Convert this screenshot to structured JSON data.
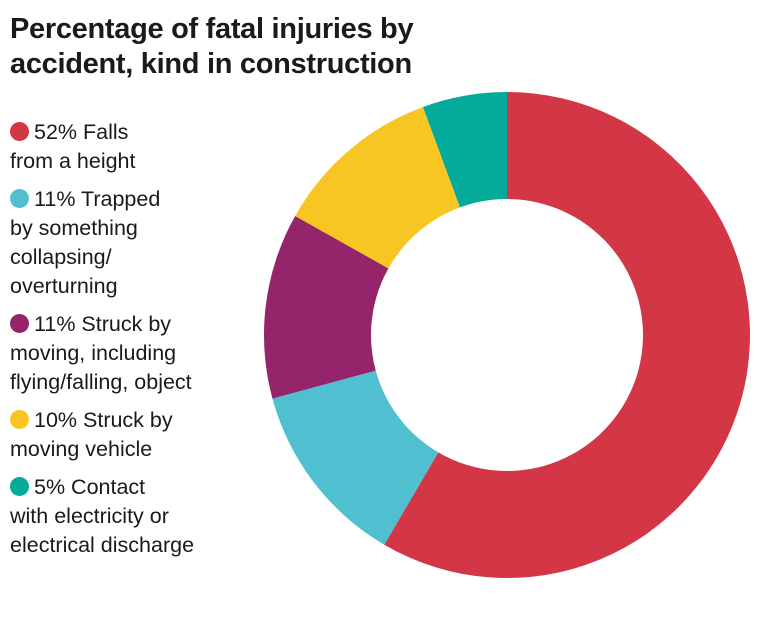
{
  "title_line1": "Percentage of fatal injuries by",
  "title_line2": "accident, kind in construction",
  "legend": [
    {
      "head": "52% Falls",
      "rest": "from a height",
      "color": "#d33645"
    },
    {
      "head": "11% Trapped",
      "rest": "by something collapsing/ overturning",
      "color": "#50bfd0"
    },
    {
      "head": "11% Struck by",
      "rest": "moving, including flying/falling, object",
      "color": "#94256b"
    },
    {
      "head": "10% Struck by",
      "rest": "moving vehicle",
      "color": "#f7c622"
    },
    {
      "head": "5% Contact",
      "rest": "with electricity or electrical discharge",
      "color": "#04aa9a"
    }
  ],
  "chart_data": {
    "type": "pie",
    "variant": "donut",
    "title": "Percentage of fatal injuries by accident, kind in construction",
    "categories": [
      "Falls from a height",
      "Trapped by something collapsing/overturning",
      "Struck by moving, including flying/falling, object",
      "Struck by moving vehicle",
      "Contact with electricity or electrical discharge"
    ],
    "values": [
      52,
      11,
      11,
      10,
      5
    ],
    "unit": "%",
    "colors": [
      "#d33645",
      "#50bfd0",
      "#94256b",
      "#f7c622",
      "#04aa9a"
    ],
    "legend_position": "left",
    "start_angle_deg": 0,
    "direction": "clockwise"
  }
}
